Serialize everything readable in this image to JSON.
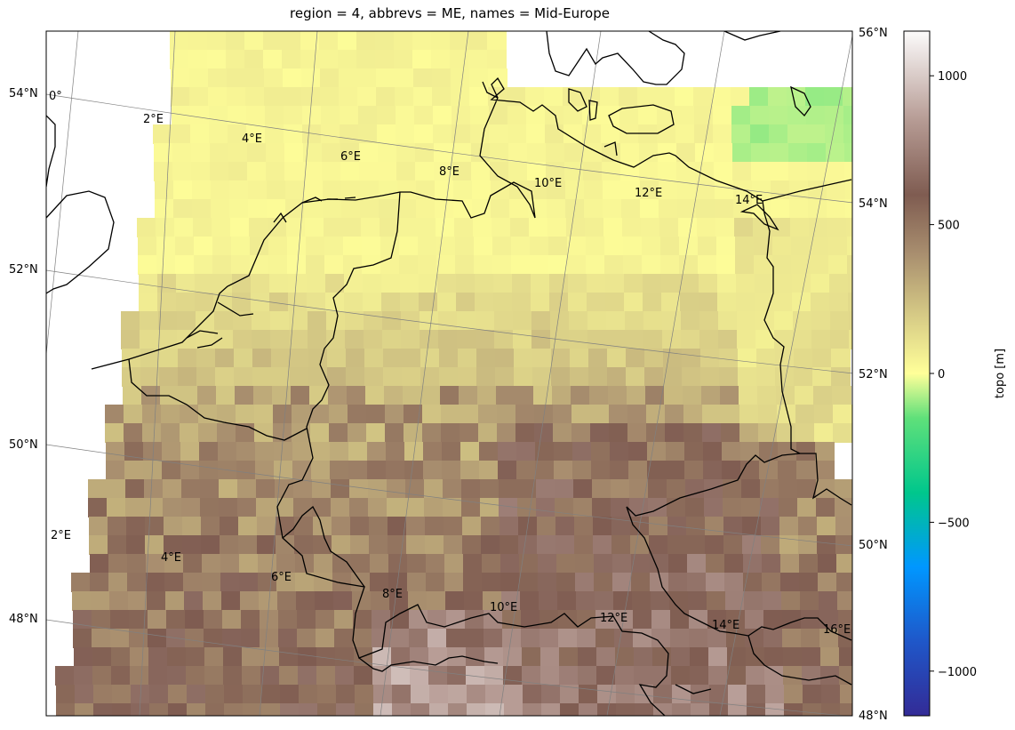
{
  "title": "region = 4, abbrevs = ME, names = Mid-Europe",
  "colorbar": {
    "label": "topo [m]",
    "range": [
      -1150,
      1150
    ],
    "ticks": [
      {
        "v": 1000,
        "t": "1000"
      },
      {
        "v": 500,
        "t": "500"
      },
      {
        "v": 0,
        "t": "0"
      },
      {
        "v": -500,
        "t": "−500"
      },
      {
        "v": -1000,
        "t": "−1000"
      }
    ],
    "stops": [
      {
        "v": -1150,
        "c": "#332b96"
      },
      {
        "v": -900,
        "c": "#1f57c9"
      },
      {
        "v": -650,
        "c": "#0097ff"
      },
      {
        "v": -400,
        "c": "#00c78c"
      },
      {
        "v": -150,
        "c": "#5fe07a"
      },
      {
        "v": 0,
        "c": "#ffff99"
      },
      {
        "v": 200,
        "c": "#d5c985"
      },
      {
        "v": 400,
        "c": "#a98f6f"
      },
      {
        "v": 600,
        "c": "#7f5c51"
      },
      {
        "v": 850,
        "c": "#b69b94"
      },
      {
        "v": 1150,
        "c": "#fcfbfb"
      }
    ]
  },
  "right_axis_labels": [
    "56°N",
    "54°N",
    "52°N",
    "50°N",
    "48°N"
  ],
  "left_axis_labels": [
    "54°N",
    "52°N",
    "50°N",
    "48°N"
  ],
  "top_lon_labels": [
    "0°",
    "2°E",
    "4°E",
    "6°E",
    "8°E",
    "10°E",
    "12°E",
    "14°E"
  ],
  "bottom_lon_labels": [
    "2°E",
    "4°E",
    "6°E",
    "8°E",
    "10°E",
    "12°E",
    "14°E",
    "16°E"
  ]
}
